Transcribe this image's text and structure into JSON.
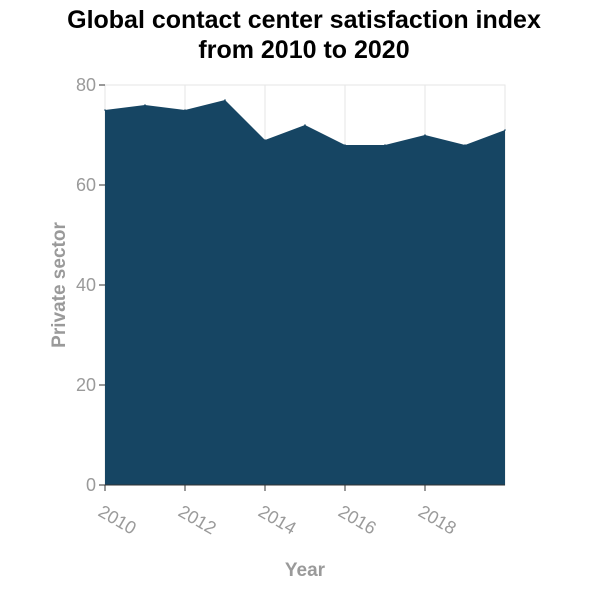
{
  "chart_data": {
    "type": "area",
    "title": "Global contact center satisfaction index from 2010 to 2020",
    "title_lines": [
      "Global contact center satisfaction index",
      "from 2010 to 2020"
    ],
    "xlabel": "Year",
    "ylabel": "Private sector",
    "x": [
      2010,
      2011,
      2012,
      2013,
      2014,
      2015,
      2016,
      2017,
      2018,
      2019,
      2020
    ],
    "series": [
      {
        "values": [
          75,
          76,
          75,
          77,
          69,
          72,
          68,
          68,
          70,
          68,
          71
        ],
        "color": "#164563"
      }
    ],
    "xlim": [
      2010,
      2020
    ],
    "ylim": [
      0,
      80
    ],
    "xticks": [
      "2010",
      "2012",
      "2014",
      "2016",
      "2018"
    ],
    "yticks": [
      "0",
      "20",
      "40",
      "60",
      "80"
    ],
    "grid": true,
    "legend": "none"
  }
}
